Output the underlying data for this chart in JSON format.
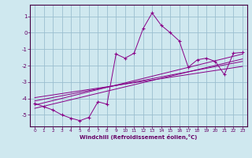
{
  "xlabel": "Windchill (Refroidissement éolien,°C)",
  "background_color": "#cfe8ef",
  "grid_color": "#9bbfcf",
  "line_color": "#880088",
  "xlim": [
    -0.5,
    23.5
  ],
  "ylim": [
    -5.7,
    1.7
  ],
  "yticks": [
    1,
    0,
    -1,
    -2,
    -3,
    -4,
    -5
  ],
  "xticks": [
    0,
    1,
    2,
    3,
    4,
    5,
    6,
    7,
    8,
    9,
    10,
    11,
    12,
    13,
    14,
    15,
    16,
    17,
    18,
    19,
    20,
    21,
    22,
    23
  ],
  "main_x": [
    0,
    1,
    2,
    3,
    4,
    5,
    6,
    7,
    8,
    9,
    10,
    11,
    12,
    13,
    14,
    15,
    16,
    17,
    18,
    19,
    20,
    21,
    22,
    23
  ],
  "main_y": [
    -4.3,
    -4.5,
    -4.7,
    -5.0,
    -5.2,
    -5.35,
    -5.15,
    -4.2,
    -4.35,
    -1.3,
    -1.55,
    -1.25,
    0.25,
    1.2,
    0.45,
    0.0,
    -0.5,
    -2.1,
    -1.65,
    -1.55,
    -1.75,
    -2.55,
    -1.25,
    -1.2
  ],
  "line1_x": [
    0,
    23
  ],
  "line1_y": [
    -4.4,
    -1.3
  ],
  "line2_x": [
    0,
    23
  ],
  "line2_y": [
    -4.6,
    -1.6
  ],
  "line3_x": [
    0,
    23
  ],
  "line3_y": [
    -4.15,
    -1.75
  ],
  "line4_x": [
    0,
    23
  ],
  "line4_y": [
    -3.95,
    -2.05
  ]
}
